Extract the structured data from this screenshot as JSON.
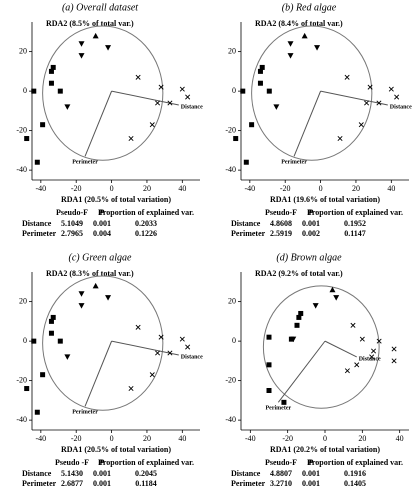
{
  "chart_data": [
    {
      "type": "scatter",
      "title": "(a) Overall dataset",
      "y_label": "RDA2 (8.5% of total var.)",
      "x_label": "RDA1 (20.5% of total variation)",
      "xlim": [
        -45,
        50
      ],
      "xticks": [
        -40,
        -20,
        0,
        20,
        40
      ],
      "ylim": [
        -45,
        35
      ],
      "yticks": [
        -40,
        -20,
        0,
        20
      ],
      "series": [
        {
          "marker": "triangle-up",
          "color": "#000000",
          "x": [
            -9
          ],
          "values": [
            28
          ]
        },
        {
          "marker": "triangle-down",
          "color": "#000000",
          "x": [
            -2,
            -17,
            -17,
            -25
          ],
          "values": [
            22,
            24,
            18,
            -8
          ]
        },
        {
          "marker": "square",
          "color": "#000000",
          "x": [
            -33,
            -34,
            -34,
            -29,
            -44,
            -39,
            -48,
            -42
          ],
          "values": [
            12,
            10,
            4,
            0,
            0,
            -17,
            -24,
            -36
          ]
        },
        {
          "marker": "cross",
          "color": "#000000",
          "x": [
            15,
            28,
            40,
            43,
            33,
            23,
            11,
            26
          ],
          "values": [
            7,
            2,
            1,
            -3,
            -6,
            -17,
            -24,
            -6
          ]
        }
      ],
      "circle": {
        "x": -5,
        "y": -1,
        "r": 34
      },
      "vectors": [
        {
          "label": "Distance",
          "x": 38,
          "y": -7
        },
        {
          "label": "Perimeter",
          "x": -15,
          "y": -33
        }
      ],
      "table": {
        "header": [
          "Pseudo-F",
          "P",
          "Proportion of explained var."
        ],
        "rows": [
          [
            "Distance",
            "5.1049",
            "0.001",
            "0.2033"
          ],
          [
            "Perimeter",
            "2.7965",
            "0.004",
            "0.1226"
          ]
        ]
      }
    },
    {
      "type": "scatter",
      "title": "(b) Red algae",
      "y_label": "RDA2 (8.4% of total var.)",
      "x_label": "RDA1 (19.6% of total variation)",
      "xlim": [
        -45,
        50
      ],
      "xticks": [
        -40,
        -20,
        0,
        20,
        40
      ],
      "ylim": [
        -45,
        35
      ],
      "yticks": [
        -40,
        -20,
        0,
        20
      ],
      "series": [
        {
          "marker": "triangle-up",
          "color": "#000000",
          "x": [
            -9
          ],
          "values": [
            28
          ]
        },
        {
          "marker": "triangle-down",
          "color": "#000000",
          "x": [
            -2,
            -17,
            -17,
            -25
          ],
          "values": [
            22,
            24,
            18,
            -8
          ]
        },
        {
          "marker": "square",
          "color": "#000000",
          "x": [
            -33,
            -34,
            -34,
            -29,
            -44,
            -39,
            -48,
            -42
          ],
          "values": [
            12,
            10,
            4,
            0,
            0,
            -17,
            -24,
            -36
          ]
        },
        {
          "marker": "cross",
          "color": "#000000",
          "x": [
            15,
            28,
            40,
            43,
            33,
            23,
            11,
            26
          ],
          "values": [
            7,
            2,
            1,
            -3,
            -6,
            -17,
            -24,
            -6
          ]
        }
      ],
      "circle": {
        "x": -5,
        "y": -1,
        "r": 34
      },
      "vectors": [
        {
          "label": "Distance",
          "x": 38,
          "y": -7
        },
        {
          "label": "Perimeter",
          "x": -15,
          "y": -33
        }
      ],
      "table": {
        "header": [
          "Pseudo-F",
          "P",
          "Proportion of explained var."
        ],
        "rows": [
          [
            "Distance",
            "4.8608",
            "0.001",
            "0.1952"
          ],
          [
            "Perimeter",
            "2.5919",
            "0.002",
            "0.1147"
          ]
        ]
      }
    },
    {
      "type": "scatter",
      "title": "(c) Green algae",
      "y_label": "RDA2 (8.3% of total var.)",
      "x_label": "RDA1 (20.5% of total variation)",
      "xlim": [
        -45,
        50
      ],
      "xticks": [
        -40,
        -20,
        0,
        20,
        40
      ],
      "ylim": [
        -45,
        35
      ],
      "yticks": [
        -40,
        -20,
        0,
        20
      ],
      "series": [
        {
          "marker": "triangle-up",
          "color": "#000000",
          "x": [
            -9
          ],
          "values": [
            28
          ]
        },
        {
          "marker": "triangle-down",
          "color": "#000000",
          "x": [
            -2,
            -17,
            -17,
            -25
          ],
          "values": [
            22,
            24,
            18,
            -8
          ]
        },
        {
          "marker": "square",
          "color": "#000000",
          "x": [
            -33,
            -34,
            -34,
            -29,
            -44,
            -39,
            -48,
            -42
          ],
          "values": [
            12,
            10,
            4,
            0,
            0,
            -17,
            -24,
            -36
          ]
        },
        {
          "marker": "cross",
          "color": "#000000",
          "x": [
            15,
            28,
            40,
            43,
            33,
            23,
            11,
            26
          ],
          "values": [
            7,
            2,
            1,
            -3,
            -6,
            -17,
            -24,
            -6
          ]
        }
      ],
      "circle": {
        "x": -5,
        "y": -1,
        "r": 34
      },
      "vectors": [
        {
          "label": "Distance",
          "x": 38,
          "y": -7
        },
        {
          "label": "Perimeter",
          "x": -15,
          "y": -33
        }
      ],
      "table": {
        "header": [
          "Pseudo -F",
          "P",
          "Proportion of explained var."
        ],
        "rows": [
          [
            "Distance",
            "5.1430",
            "0.001",
            "0.2045"
          ],
          [
            "Perimeter",
            "2.6877",
            "0.001",
            "0.1184"
          ]
        ]
      }
    },
    {
      "type": "scatter",
      "title": "(d) Brown algae",
      "y_label": "RDA2 (9.2% of total var.)",
      "x_label": "RDA1 (20.2% of total variation)",
      "xlim": [
        -45,
        45
      ],
      "xticks": [
        -40,
        -20,
        0,
        20,
        40
      ],
      "ylim": [
        -45,
        35
      ],
      "yticks": [
        -40,
        -20,
        0,
        20
      ],
      "series": [
        {
          "marker": "triangle-up",
          "color": "#000000",
          "x": [
            4
          ],
          "values": [
            26
          ]
        },
        {
          "marker": "triangle-down",
          "color": "#000000",
          "x": [
            6,
            -5,
            -17
          ],
          "values": [
            22,
            18,
            1
          ]
        },
        {
          "marker": "square",
          "color": "#000000",
          "x": [
            -13,
            -14,
            -15,
            -30,
            -18,
            -30,
            -30,
            -22
          ],
          "values": [
            14,
            12,
            8,
            2,
            1,
            -12,
            -25,
            -31
          ]
        },
        {
          "marker": "cross",
          "color": "#000000",
          "x": [
            15,
            20,
            29,
            26,
            37,
            37,
            25,
            17,
            12
          ],
          "values": [
            8,
            1,
            0,
            -5,
            -4,
            -10,
            -8,
            -12,
            -15
          ]
        }
      ],
      "circle": {
        "x": -2,
        "y": -3,
        "r": 31
      },
      "vectors": [
        {
          "label": "Distance",
          "x": 17,
          "y": -8
        },
        {
          "label": "Perimeter",
          "x": -25,
          "y": -31
        }
      ],
      "table": {
        "header": [
          "Pseudo-F",
          "P",
          "Proportion of explained var."
        ],
        "rows": [
          [
            "Distance",
            "4.8807",
            "0.001",
            "0.1916"
          ],
          [
            "Perimeter",
            "3.2710",
            "0.001",
            "0.1405"
          ]
        ]
      }
    }
  ]
}
